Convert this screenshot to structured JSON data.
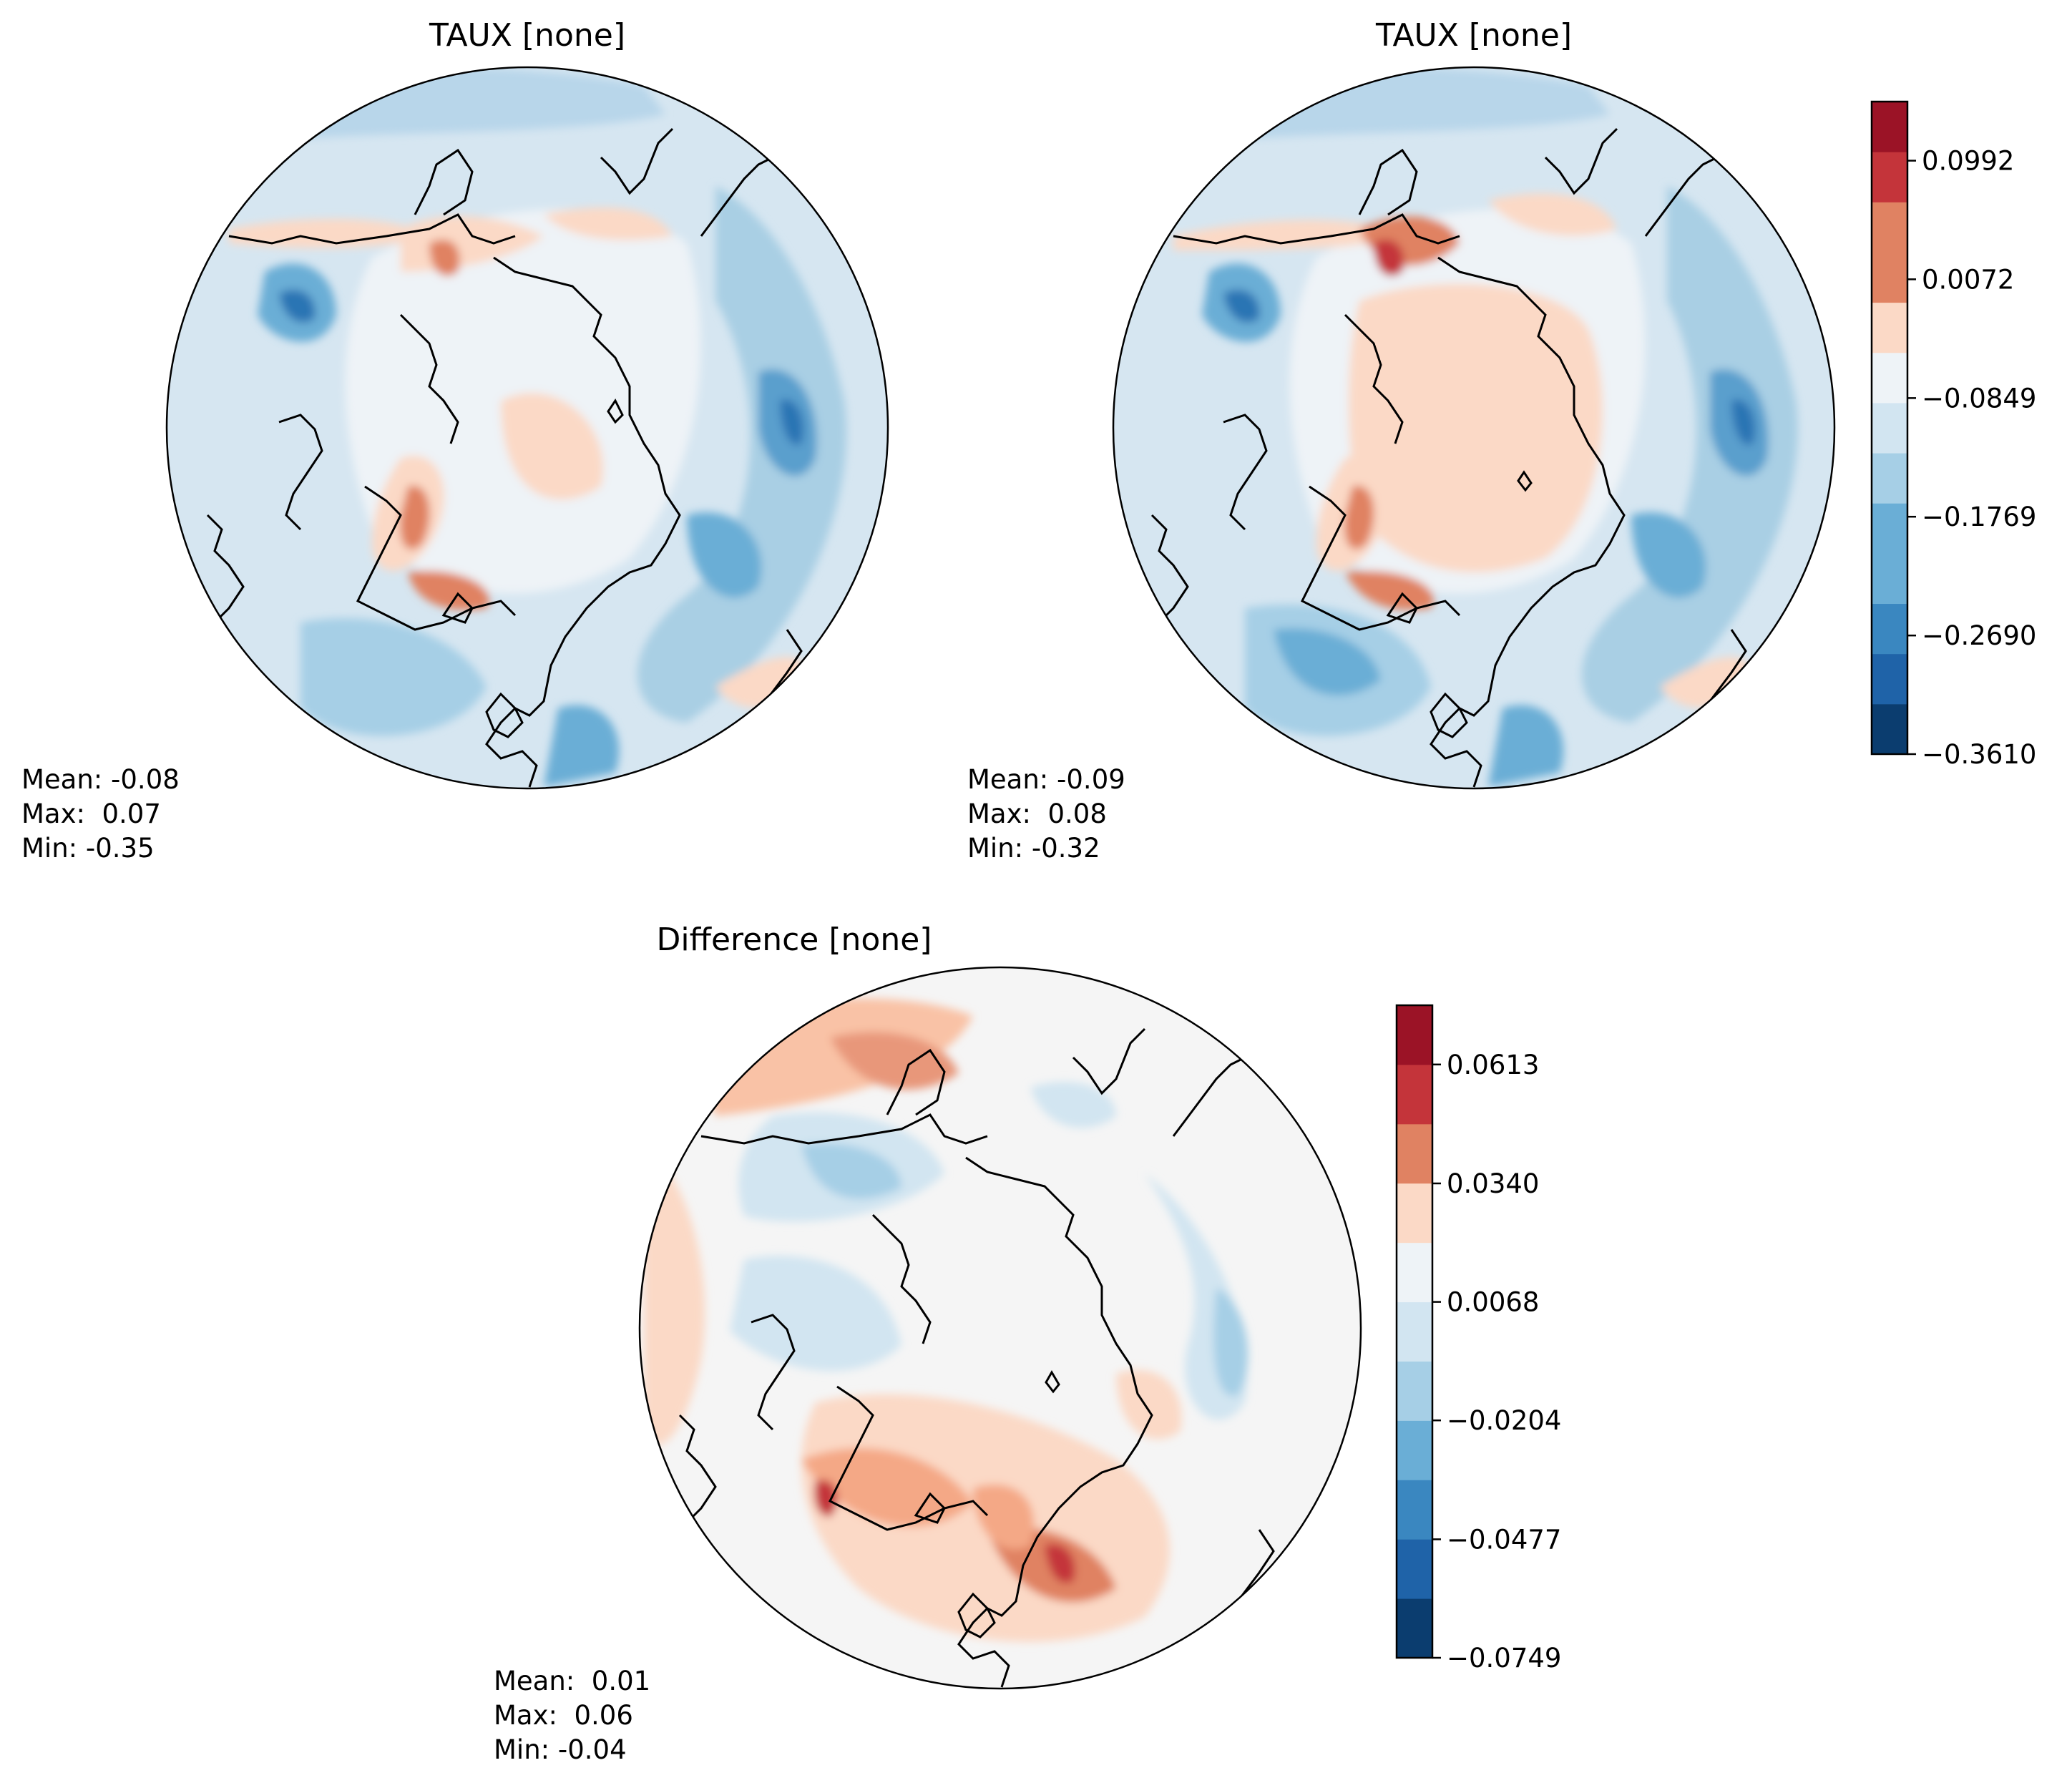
{
  "chart_data": [
    {
      "type": "contour-map",
      "projection": "north-polar-stereographic",
      "title": "TAUX [none]",
      "stats": {
        "mean": "Mean: -0.08",
        "max": "Max:  0.07",
        "min": "Min: -0.35"
      }
    },
    {
      "type": "contour-map",
      "projection": "north-polar-stereographic",
      "title": "TAUX [none]",
      "stats": {
        "mean": "Mean: -0.09",
        "max": "Max:  0.08",
        "min": "Min: -0.32"
      },
      "colorbar": {
        "colormap": "RdBu_r",
        "levels": 13,
        "range": [
          -0.361,
          0.145
        ],
        "ticks": [
          0.0992,
          0.0072,
          -0.0849,
          -0.1769,
          -0.269,
          -0.361
        ],
        "tick_labels": [
          "0.0992",
          "0.0072",
          "−0.0849",
          "−0.1769",
          "−0.2690",
          "−0.3610"
        ]
      }
    },
    {
      "type": "contour-map",
      "projection": "north-polar-stereographic",
      "title": "Difference [none]",
      "stats": {
        "mean": "Mean:  0.01",
        "max": "Max:  0.06",
        "min": "Min: -0.04"
      },
      "colorbar": {
        "colormap": "RdBu_r",
        "levels": 11,
        "range": [
          -0.0749,
          0.0749
        ],
        "ticks": [
          0.0613,
          0.034,
          0.0068,
          -0.0204,
          -0.0477,
          -0.0749
        ],
        "tick_labels": [
          "0.0613",
          "0.0340",
          "0.0068",
          "−0.0204",
          "−0.0477",
          "−0.0749"
        ]
      }
    }
  ],
  "colors": {
    "diverging": [
      "#0b3d6f",
      "#1f63a8",
      "#3a87c0",
      "#6aaed6",
      "#a6cfe6",
      "#d2e5f1",
      "#eef3f7",
      "#fbd9c6",
      "#e08262",
      "#c4343a",
      "#9b1326"
    ],
    "ocean_neutral_top": "#e9f0f5",
    "ocean_neutral_diff": "#f5f5f5",
    "coastline": "#000000"
  }
}
